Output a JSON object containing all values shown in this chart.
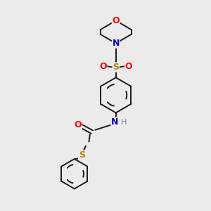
{
  "background_color": "#ebebeb",
  "bond_color": "#1a1a1a",
  "colors": {
    "O": "#ff0000",
    "N": "#0000cc",
    "S": "#b8860b",
    "H": "#6b8e8e"
  },
  "figsize": [
    3.0,
    3.0
  ],
  "dpi": 100,
  "lw": 1.4
}
